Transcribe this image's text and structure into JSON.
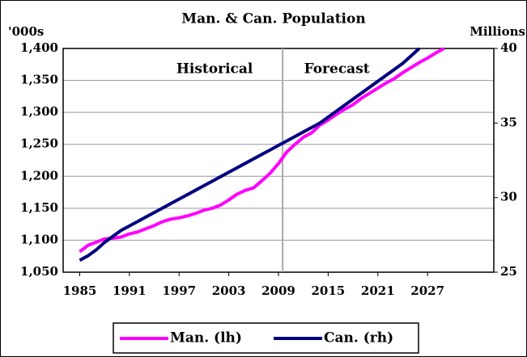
{
  "chart_data": {
    "type": "line",
    "title": "Man. & Can. Population",
    "y_label": "'000s",
    "y2_label": "Millions",
    "annotations": [
      "Historical",
      "Forecast"
    ],
    "divider_x": 2009.5,
    "x": [
      1985,
      1986,
      1987,
      1988,
      1989,
      1990,
      1991,
      1992,
      1993,
      1994,
      1995,
      1996,
      1997,
      1998,
      1999,
      2000,
      2001,
      2002,
      2003,
      2004,
      2005,
      2006,
      2007,
      2008,
      2009,
      2010,
      2011,
      2012,
      2013,
      2014,
      2015,
      2016,
      2017,
      2018,
      2019,
      2020,
      2021,
      2022,
      2023,
      2024,
      2025,
      2026,
      2027,
      2028,
      2029
    ],
    "series": [
      {
        "name": "Man. (lh)",
        "color": "#ff00ff",
        "values": [
          1082,
          1092,
          1097,
          1102,
          1103,
          1105,
          1110,
          1113,
          1118,
          1123,
          1129,
          1133,
          1135,
          1138,
          1142,
          1147,
          1150,
          1155,
          1163,
          1172,
          1178,
          1182,
          1193,
          1205,
          1220,
          1238,
          1250,
          1261,
          1268,
          1280,
          1288,
          1297,
          1305,
          1312,
          1322,
          1330,
          1338,
          1346,
          1353,
          1362,
          1370,
          1378,
          1385,
          1393,
          1400
        ]
      },
      {
        "name": "Can. (rh)",
        "color": "#000080",
        "axis": "y2",
        "values": [
          25.8,
          26.1,
          26.5,
          27.0,
          27.4,
          27.8,
          28.1,
          28.4,
          28.7,
          29.0,
          29.3,
          29.6,
          29.9,
          30.2,
          30.5,
          30.8,
          31.1,
          31.4,
          31.7,
          32.0,
          32.3,
          32.6,
          32.9,
          33.2,
          33.5,
          33.8,
          34.1,
          34.4,
          34.7,
          35.0,
          35.4,
          35.8,
          36.2,
          36.6,
          37.0,
          37.4,
          37.8,
          38.2,
          38.6,
          39.0,
          39.5,
          40.0,
          null,
          null,
          null
        ]
      }
    ],
    "xlim": [
      1983,
      2035
    ],
    "xticks": [
      1985,
      1991,
      1997,
      2003,
      2009,
      2015,
      2021,
      2027
    ],
    "ylim": [
      1050,
      1400
    ],
    "yticks": [
      {
        "value": 1050,
        "label": "1,050"
      },
      {
        "value": 1100,
        "label": "1,100"
      },
      {
        "value": 1150,
        "label": "1,150"
      },
      {
        "value": 1200,
        "label": "1,200"
      },
      {
        "value": 1250,
        "label": "1,250"
      },
      {
        "value": 1300,
        "label": "1,300"
      },
      {
        "value": 1350,
        "label": "1,350"
      },
      {
        "value": 1400,
        "label": "1,400"
      }
    ],
    "y2lim": [
      25,
      40
    ],
    "y2ticks": [
      25,
      30,
      35,
      40
    ],
    "grid": true,
    "legend": "bottom"
  }
}
